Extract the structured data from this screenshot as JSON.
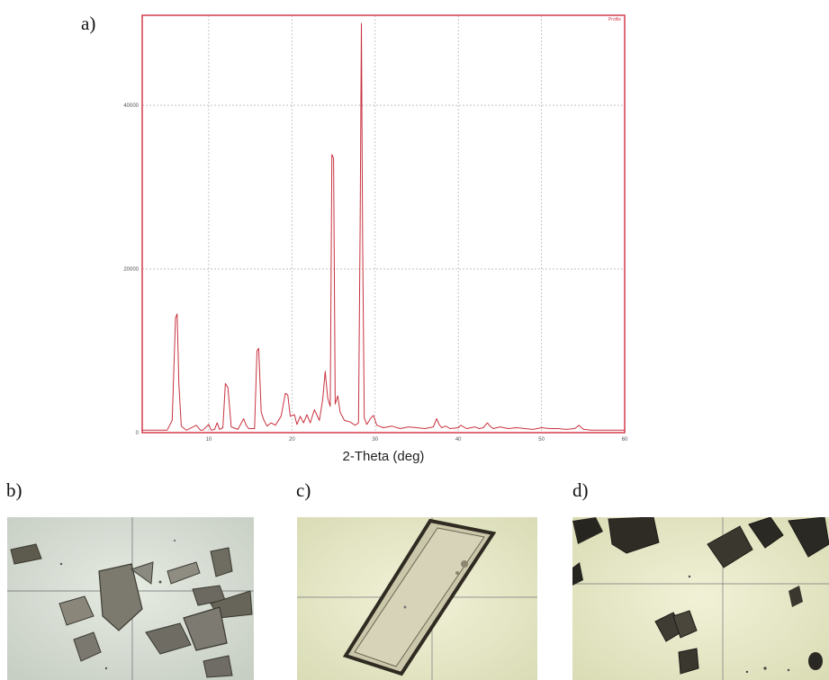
{
  "panel_labels": {
    "a": "a)",
    "b": "b)",
    "c": "c)",
    "d": "d)"
  },
  "colors": {
    "frame": "#d23a4e",
    "trace": "#c8323f",
    "grid": "#b8b8b8"
  },
  "photos": [
    {
      "description": "micrograph-panel-b"
    },
    {
      "description": "micrograph-panel-c"
    },
    {
      "description": "micrograph-panel-d"
    }
  ],
  "chart_data": {
    "type": "line",
    "xlabel": "2-Theta (deg)",
    "ylabel": "",
    "legend": "Profile",
    "legend_placement": "top-right",
    "grid": true,
    "xlim": [
      2,
      60
    ],
    "ylim": [
      0,
      51000
    ],
    "xticks": [
      10,
      20,
      30,
      40,
      50,
      60
    ],
    "yticks": [
      0,
      20000,
      40000
    ],
    "series": [
      {
        "x": [
          2,
          5,
          5.6,
          6.0,
          6.2,
          6.4,
          6.7,
          7.3,
          8.5,
          9.0,
          9.3,
          10.0,
          10.3,
          10.7,
          11.0,
          11.3,
          11.7,
          12.0,
          12.3,
          12.7,
          13.5,
          14.2,
          14.5,
          14.8,
          15.5,
          15.8,
          16.0,
          16.3,
          16.6,
          17.0,
          17.5,
          18.0,
          18.7,
          19.2,
          19.5,
          19.8,
          20.3,
          20.6,
          21.0,
          21.4,
          21.8,
          22.2,
          22.7,
          23.3,
          23.7,
          24.0,
          24.3,
          24.6,
          24.8,
          25.0,
          25.2,
          25.5,
          25.8,
          26.3,
          27.0,
          27.6,
          28.0,
          28.2,
          28.35,
          28.5,
          28.7,
          29.0,
          29.5,
          29.8,
          30.2,
          31,
          32,
          33,
          34,
          35,
          36,
          37,
          37.4,
          37.7,
          38.0,
          38.5,
          39,
          40,
          40.3,
          41,
          42,
          42.5,
          43,
          43.5,
          43.8,
          44.2,
          45,
          46,
          47,
          48,
          49,
          50,
          51,
          52,
          53,
          54,
          54.5,
          54.8,
          55.1,
          56,
          58,
          60
        ],
        "values": [
          300,
          300,
          1500,
          14000,
          14500,
          6000,
          800,
          300,
          900,
          300,
          300,
          1000,
          300,
          400,
          1200,
          400,
          600,
          6000,
          5500,
          700,
          400,
          1700,
          900,
          500,
          500,
          10000,
          10300,
          2500,
          1600,
          800,
          1200,
          900,
          2000,
          4800,
          4600,
          2000,
          2200,
          1000,
          2000,
          1200,
          2200,
          1200,
          2800,
          1500,
          4000,
          7500,
          4200,
          3200,
          34000,
          33500,
          3500,
          4500,
          2500,
          1500,
          1300,
          900,
          1200,
          25000,
          50000,
          23000,
          1800,
          1000,
          1800,
          2100,
          900,
          600,
          800,
          500,
          700,
          600,
          500,
          700,
          1700,
          1000,
          600,
          800,
          500,
          600,
          900,
          500,
          700,
          500,
          600,
          1200,
          800,
          500,
          700,
          500,
          600,
          500,
          400,
          600,
          500,
          500,
          400,
          500,
          900,
          600,
          400,
          300,
          300,
          300
        ]
      }
    ]
  }
}
